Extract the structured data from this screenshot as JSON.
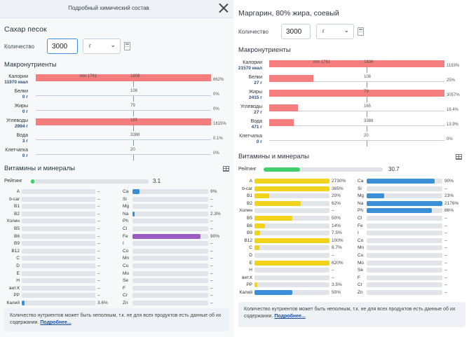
{
  "left": {
    "modal_title": "Подробный химический состав",
    "product_name": "Сахар песок",
    "quantity_label": "Количество",
    "quantity_value": "3000",
    "unit": "г",
    "macro_section_title": "Макронутриенты",
    "macros": [
      {
        "name": "Калории",
        "value": "11970 ккал",
        "min_label": "min 1761",
        "target": "1808",
        "percent": "662%",
        "fill": 1.0
      },
      {
        "name": "Белки",
        "value": "0 г",
        "target": "108",
        "percent": "0%",
        "fill": 0.0
      },
      {
        "name": "Жиры",
        "value": "0 г",
        "target": "79",
        "percent": "0%",
        "fill": 0.0
      },
      {
        "name": "Углеводы",
        "value": "2994 г",
        "target": "165",
        "percent": "1815%",
        "fill": 1.0
      },
      {
        "name": "Вода",
        "value": "3 г",
        "target": "3388",
        "percent": "0.1%",
        "fill": 0.0
      },
      {
        "name": "Клетчатка",
        "value": "0 г",
        "target": "20",
        "percent": "0%",
        "fill": 0.0
      }
    ],
    "vit_section_title": "Витамины и минералы",
    "rating_label": "Рейтинг",
    "rating_value": "3.1",
    "rating_fill": 0.031,
    "vitamins_left": [
      {
        "name": "A",
        "pct": "–",
        "fill": 0
      },
      {
        "name": "b-car",
        "pct": "–",
        "fill": 0
      },
      {
        "name": "B1",
        "pct": "–",
        "fill": 0
      },
      {
        "name": "B2",
        "pct": "–",
        "fill": 0
      },
      {
        "name": "Холин",
        "pct": "–",
        "fill": 0
      },
      {
        "name": "B5",
        "pct": "–",
        "fill": 0
      },
      {
        "name": "B6",
        "pct": "–",
        "fill": 0
      },
      {
        "name": "B9",
        "pct": "–",
        "fill": 0
      },
      {
        "name": "B12",
        "pct": "–",
        "fill": 0
      },
      {
        "name": "C",
        "pct": "–",
        "fill": 0
      },
      {
        "name": "D",
        "pct": "–",
        "fill": 0
      },
      {
        "name": "E",
        "pct": "–",
        "fill": 0
      },
      {
        "name": "H",
        "pct": "–",
        "fill": 0
      },
      {
        "name": "вит.К",
        "pct": "–",
        "fill": 0
      },
      {
        "name": "PP",
        "pct": "–",
        "fill": 0
      },
      {
        "name": "Калий",
        "pct": "3.6%",
        "fill": 0.036
      }
    ],
    "minerals_left": [
      {
        "name": "Ca",
        "pct": "9%",
        "fill": 0.09
      },
      {
        "name": "Si",
        "pct": "–",
        "fill": 0
      },
      {
        "name": "Mg",
        "pct": "–",
        "fill": 0
      },
      {
        "name": "Na",
        "pct": "2.3%",
        "fill": 0.023
      },
      {
        "name": "Ph",
        "pct": "–",
        "fill": 0
      },
      {
        "name": "Cl",
        "pct": "–",
        "fill": 0
      },
      {
        "name": "Fe",
        "pct": "90%",
        "fill": 0.9
      },
      {
        "name": "I",
        "pct": "–",
        "fill": 0
      },
      {
        "name": "Co",
        "pct": "–",
        "fill": 0
      },
      {
        "name": "Mn",
        "pct": "–",
        "fill": 0
      },
      {
        "name": "Cu",
        "pct": "–",
        "fill": 0
      },
      {
        "name": "Mo",
        "pct": "–",
        "fill": 0
      },
      {
        "name": "Se",
        "pct": "–",
        "fill": 0
      },
      {
        "name": "F",
        "pct": "–",
        "fill": 0
      },
      {
        "name": "Cr",
        "pct": "–",
        "fill": 0
      },
      {
        "name": "Zn",
        "pct": "–",
        "fill": 0
      }
    ],
    "notice_text": "Количество нутриентов может быть неполным, т.к. не для всех продуктов есть данные об их содержании.",
    "notice_link": "Подробнее..."
  },
  "right": {
    "product_name": "Маргарин, 80% жира, соевый",
    "quantity_label": "Количество",
    "quantity_value": "3000",
    "unit": "г",
    "macro_section_title": "Макронутриенты",
    "macros": [
      {
        "name": "Калории",
        "value": "21570 ккал",
        "min_label": "min 1761",
        "target": "1808",
        "percent": "1193%",
        "fill": 1.0
      },
      {
        "name": "Белки",
        "value": "27 г",
        "target": "108",
        "percent": "25%",
        "fill": 0.25
      },
      {
        "name": "Жиры",
        "value": "2415 г",
        "target": "79",
        "percent": "3057%",
        "fill": 1.0
      },
      {
        "name": "Углеводы",
        "value": "27 г",
        "target": "165",
        "percent": "16.4%",
        "fill": 0.164
      },
      {
        "name": "Вода",
        "value": "471 г",
        "target": "3388",
        "percent": "13.9%",
        "fill": 0.139
      },
      {
        "name": "Клетчатка",
        "value": "0 г",
        "target": "20",
        "percent": "0%",
        "fill": 0.0
      }
    ],
    "vit_section_title": "Витамины и минералы",
    "rating_label": "Рейтинг",
    "rating_value": "30.7",
    "rating_fill": 0.307,
    "vitamins": [
      {
        "name": "A",
        "pct": "2730%",
        "fill": 1.0
      },
      {
        "name": "b-car",
        "pct": "365%",
        "fill": 1.0
      },
      {
        "name": "B1",
        "pct": "20%",
        "fill": 0.2
      },
      {
        "name": "B2",
        "pct": "62%",
        "fill": 0.62
      },
      {
        "name": "Холин",
        "pct": "–",
        "fill": 0
      },
      {
        "name": "B5",
        "pct": "50%",
        "fill": 0.5
      },
      {
        "name": "B6",
        "pct": "14%",
        "fill": 0.14
      },
      {
        "name": "B9",
        "pct": "7.5%",
        "fill": 0.075
      },
      {
        "name": "B12",
        "pct": "100%",
        "fill": 1.0
      },
      {
        "name": "C",
        "pct": "6.7%",
        "fill": 0.067
      },
      {
        "name": "D",
        "pct": "–",
        "fill": 0
      },
      {
        "name": "E",
        "pct": "620%",
        "fill": 1.0
      },
      {
        "name": "H",
        "pct": "–",
        "fill": 0
      },
      {
        "name": "вит.К",
        "pct": "–",
        "fill": 0
      },
      {
        "name": "PP",
        "pct": "3.5%",
        "fill": 0.035
      },
      {
        "name": "Калий",
        "pct": "50%",
        "fill": 0.5
      }
    ],
    "minerals": [
      {
        "name": "Ca",
        "pct": "90%",
        "fill": 0.9
      },
      {
        "name": "Si",
        "pct": "–",
        "fill": 0
      },
      {
        "name": "Mg",
        "pct": "23%",
        "fill": 0.23
      },
      {
        "name": "Na",
        "pct": "2176%",
        "fill": 1.0
      },
      {
        "name": "Ph",
        "pct": "86%",
        "fill": 0.86
      },
      {
        "name": "Cl",
        "pct": "–",
        "fill": 0
      },
      {
        "name": "Fe",
        "pct": "–",
        "fill": 0
      },
      {
        "name": "I",
        "pct": "–",
        "fill": 0
      },
      {
        "name": "Co",
        "pct": "–",
        "fill": 0
      },
      {
        "name": "Mn",
        "pct": "–",
        "fill": 0
      },
      {
        "name": "Cu",
        "pct": "–",
        "fill": 0
      },
      {
        "name": "Mo",
        "pct": "–",
        "fill": 0
      },
      {
        "name": "Se",
        "pct": "–",
        "fill": 0
      },
      {
        "name": "F",
        "pct": "–",
        "fill": 0
      },
      {
        "name": "Cr",
        "pct": "–",
        "fill": 0
      },
      {
        "name": "Zn",
        "pct": "–",
        "fill": 0
      }
    ],
    "notice_text": "Количество нутриентов может быть неполным, т.к. не для всех продуктов есть данные об их содержании.",
    "notice_link": "Подробнее..."
  },
  "colors": {
    "macro": "#f47e7e",
    "rating": "#3ecf6a",
    "vitamin": "#f2d31b",
    "mineral": "#3b8fd6",
    "iron": "#9a5cc0"
  },
  "icons": [
    "close-icon",
    "calculator-icon",
    "table-icon",
    "chevron-down-icon"
  ]
}
